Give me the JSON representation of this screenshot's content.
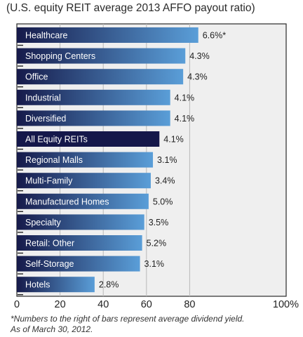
{
  "chart_data": {
    "type": "bar",
    "orientation": "horizontal",
    "title": "(U.S. equity REIT average 2013 AFFO payout ratio)",
    "categories": [
      "Healthcare",
      "Shopping Centers",
      "Office",
      "Industrial",
      "Diversified",
      "All Equity REITs",
      "Regional Malls",
      "Multi-Family",
      "Manufactured Homes",
      "Specialty",
      "Retail: Other",
      "Self-Storage",
      "Hotels"
    ],
    "values": [
      84,
      78,
      77,
      71,
      71,
      66,
      63,
      62,
      61,
      59,
      58,
      57,
      36
    ],
    "data_labels": [
      "6.6%*",
      "4.3%",
      "4.3%",
      "4.1%",
      "4.1%",
      "4.1%",
      "3.1%",
      "3.4%",
      "5.0%",
      "3.5%",
      "5.2%",
      "3.1%",
      "2.8%"
    ],
    "highlight_category": "All Equity REITs",
    "xlim": [
      0,
      100
    ],
    "x_ticks": [
      "0",
      "20",
      "40",
      "60",
      "80",
      "100%"
    ],
    "grid": true,
    "colors": {
      "bar_dark": "#161a4a",
      "bar_light": "#5a9ed8",
      "highlight_bar": "#14174a",
      "plot_background": "#efefef",
      "gridline": "#b9b9b9"
    }
  },
  "footnote": {
    "line1": "*Numbers to the right of bars represent average dividend yield.",
    "line2": "As of March 30, 2012."
  }
}
